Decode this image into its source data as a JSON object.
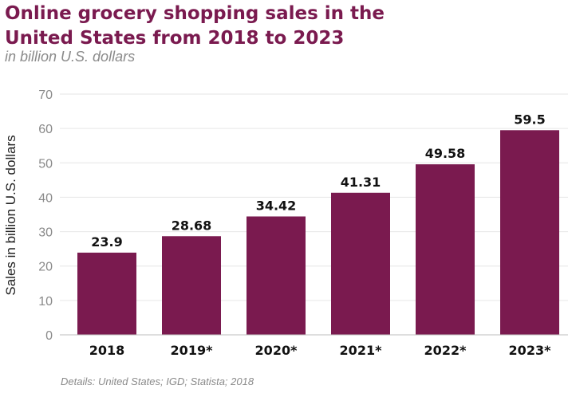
{
  "header": {
    "title_line1": "Online grocery shopping sales in the",
    "title_line2": "United States from 2018 to 2023",
    "subtitle": "in billion U.S. dollars"
  },
  "footer": {
    "details": "Details: United States; IGD; Statista; 2018"
  },
  "colors": {
    "bar": "#7a1a4f",
    "title": "#7a1a4f",
    "grid": "#e6e6e6",
    "axis_text": "#8a8a8a",
    "label_text": "#111111"
  },
  "chart_data": {
    "type": "bar",
    "categories": [
      "2018",
      "2019*",
      "2020*",
      "2021*",
      "2022*",
      "2023*"
    ],
    "values": [
      23.9,
      28.68,
      34.42,
      41.31,
      49.58,
      59.5
    ],
    "value_labels": [
      "23.9",
      "28.68",
      "34.42",
      "41.31",
      "49.58",
      "59.5"
    ],
    "ylabel": "Sales in billion U.S. dollars",
    "ylim": [
      0,
      70
    ],
    "yticks": [
      0,
      10,
      20,
      30,
      40,
      50,
      60,
      70
    ],
    "grid": true
  }
}
